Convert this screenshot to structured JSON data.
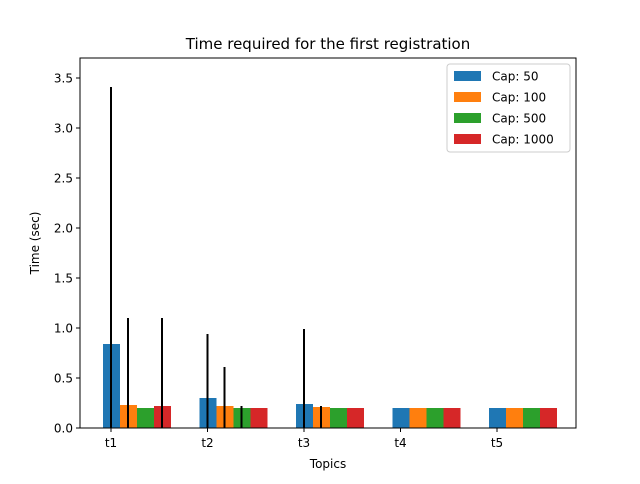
{
  "chart_data": {
    "type": "bar",
    "title": "Time required for the first registration",
    "xlabel": "Topics",
    "ylabel": "Time (sec)",
    "ylim": [
      0,
      3.7
    ],
    "yticks": [
      0.0,
      0.5,
      1.0,
      1.5,
      2.0,
      2.5,
      3.0,
      3.5
    ],
    "ytick_labels": [
      "0.0",
      "0.5",
      "1.0",
      "1.5",
      "2.0",
      "2.5",
      "3.0",
      "3.5"
    ],
    "categories": [
      "t1",
      "t2",
      "t3",
      "t4",
      "t5"
    ],
    "grid": false,
    "legend_position": "top-right",
    "series": [
      {
        "name": "Cap: 50",
        "color": "#1f77b4",
        "values": [
          0.84,
          0.3,
          0.24,
          0.2,
          0.2
        ],
        "error_max": [
          3.41,
          0.94,
          0.99,
          null,
          null
        ]
      },
      {
        "name": "Cap: 100",
        "color": "#ff7f0e",
        "values": [
          0.23,
          0.22,
          0.21,
          0.2,
          0.2
        ],
        "error_max": [
          1.1,
          0.61,
          0.22,
          null,
          null
        ]
      },
      {
        "name": "Cap: 500",
        "color": "#2ca02c",
        "values": [
          0.2,
          0.2,
          0.2,
          0.2,
          0.2
        ],
        "error_max": [
          null,
          0.22,
          null,
          null,
          null
        ]
      },
      {
        "name": "Cap: 1000",
        "color": "#d62728",
        "values": [
          0.22,
          0.2,
          0.2,
          0.2,
          0.2
        ],
        "error_max": [
          1.1,
          null,
          null,
          null,
          null
        ]
      }
    ]
  }
}
